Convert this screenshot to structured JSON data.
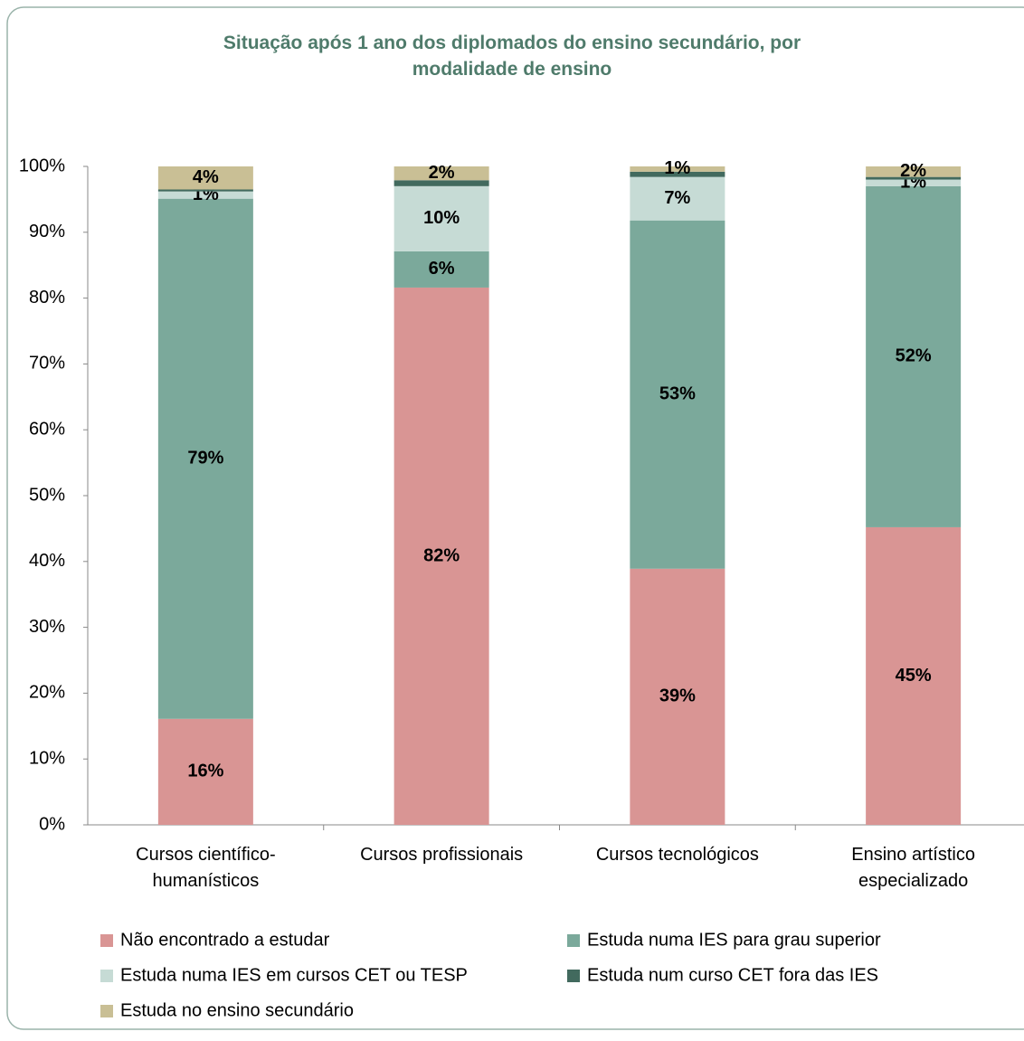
{
  "chart_data": {
    "type": "stacked_bar",
    "title": "Situação após 1 ano dos diplomados do ensino secundário, por modalidade de ensino",
    "categories": [
      "Cursos científico-humanísticos",
      "Cursos profissionais",
      "Cursos tecnológicos",
      "Ensino artístico especializado"
    ],
    "ylim": [
      0,
      100
    ],
    "yticks": [
      {
        "value": 0,
        "label": "0%"
      },
      {
        "value": 10,
        "label": "10%"
      },
      {
        "value": 20,
        "label": "20%"
      },
      {
        "value": 30,
        "label": "30%"
      },
      {
        "value": 40,
        "label": "40%"
      },
      {
        "value": 50,
        "label": "50%"
      },
      {
        "value": 60,
        "label": "60%"
      },
      {
        "value": 70,
        "label": "70%"
      },
      {
        "value": 80,
        "label": "80%"
      },
      {
        "value": 90,
        "label": "90%"
      },
      {
        "value": 100,
        "label": "100%"
      }
    ],
    "grid": false,
    "legend": "bottom",
    "series": [
      {
        "name": "Não encontrado a estudar",
        "color": "#d99594",
        "values": [
          16.1,
          81.6,
          38.9,
          45.2
        ],
        "value_labels": [
          "16%",
          "82%",
          "39%",
          "45%"
        ]
      },
      {
        "name": "Estuda numa IES para grau superior",
        "color": "#7ba99b",
        "values": [
          79,
          5.5,
          52.9,
          51.8
        ],
        "value_labels": [
          "79%",
          "6%",
          "53%",
          "52%"
        ]
      },
      {
        "name": "Estuda numa IES em cursos CET ou TESP",
        "color": "#c6dbd5",
        "values": [
          1.1,
          9.9,
          6.6,
          1.0
        ],
        "value_labels": [
          "1%",
          "10%",
          "7%",
          "1%"
        ]
      },
      {
        "name": "Estuda num curso CET fora das IES",
        "color": "#426a5e",
        "values": [
          0.3,
          0.9,
          0.8,
          0.4
        ]
      },
      {
        "name": "Estuda no ensino secundário",
        "color": "#c9bf95",
        "values": [
          3.5,
          2.1,
          0.8,
          1.6
        ],
        "value_labels": [
          "4%",
          "2%",
          "1%",
          "2%"
        ]
      }
    ]
  }
}
